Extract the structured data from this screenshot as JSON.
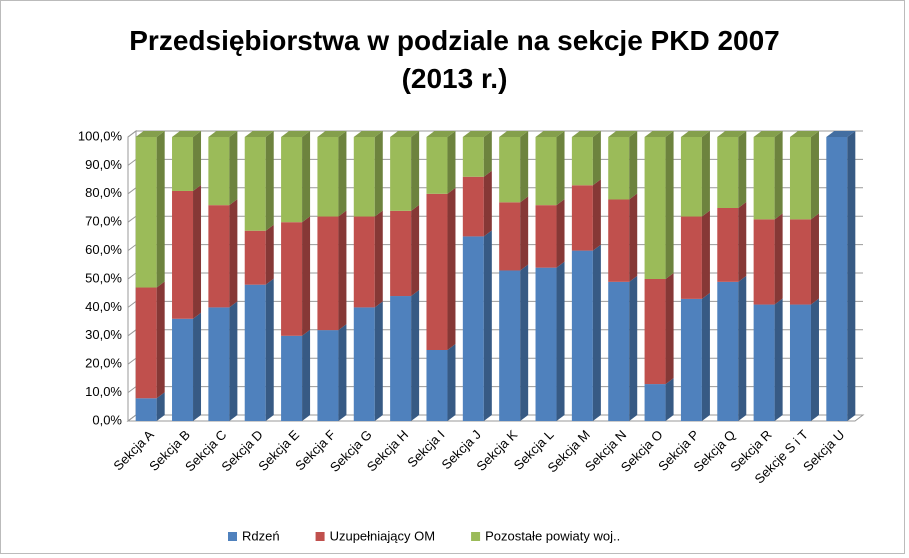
{
  "chart_data": {
    "type": "stacked_bar_3d_percent",
    "title": "Przedsiębiorstwa w podziale na sekcje PKD 2007 (2013 r.)",
    "categories": [
      "Sekcja A",
      "Sekcja B",
      "Sekcja C",
      "Sekcja D",
      "Sekcja E",
      "Sekcja F",
      "Sekcja G",
      "Sekcja H",
      "Sekcja I",
      "Sekcja J",
      "Sekcja K",
      "Sekcja L",
      "Sekcja M",
      "Sekcja N",
      "Sekcja O",
      "Sekcja P",
      "Sekcja Q",
      "Sekcja R",
      "Sekcje S i T",
      "Sekcja U"
    ],
    "series": [
      {
        "name": "Rdzeń",
        "color": "#4f81bd",
        "values": [
          8,
          36,
          40,
          48,
          30,
          32,
          40,
          44,
          25,
          65,
          53,
          54,
          60,
          49,
          13,
          43,
          49,
          41,
          41,
          100
        ]
      },
      {
        "name": "Uzupełniający OM",
        "color": "#c0504d",
        "values": [
          39,
          45,
          36,
          19,
          40,
          40,
          32,
          30,
          55,
          21,
          24,
          22,
          23,
          29,
          37,
          29,
          26,
          30,
          30,
          0
        ]
      },
      {
        "name": "Pozostałe powiaty woj..",
        "color": "#9bbb59",
        "values": [
          53,
          19,
          24,
          33,
          30,
          28,
          28,
          26,
          20,
          14,
          23,
          24,
          17,
          22,
          50,
          28,
          25,
          29,
          29,
          0
        ]
      }
    ],
    "ylim": [
      0,
      100
    ],
    "yticks": [
      {
        "value": 0,
        "label": "0,0%"
      },
      {
        "value": 10,
        "label": "10,0%"
      },
      {
        "value": 20,
        "label": "20,0%"
      },
      {
        "value": 30,
        "label": "30,0%"
      },
      {
        "value": 40,
        "label": "40,0%"
      },
      {
        "value": 50,
        "label": "50,0%"
      },
      {
        "value": 60,
        "label": "60,0%"
      },
      {
        "value": 70,
        "label": "70,0%"
      },
      {
        "value": 80,
        "label": "80,0%"
      },
      {
        "value": 90,
        "label": "90,0%"
      },
      {
        "value": 100,
        "label": "100,0%"
      }
    ],
    "grid": true,
    "legend": "bottom"
  }
}
